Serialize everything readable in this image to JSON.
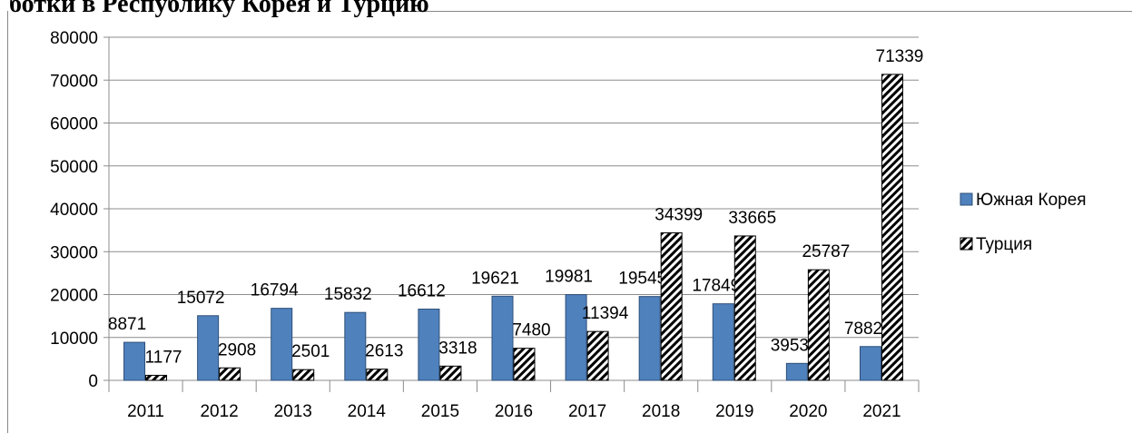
{
  "chart_data": {
    "type": "bar",
    "title": "ботки в Республику Корея и Турцию",
    "categories": [
      "2011",
      "2012",
      "2013",
      "2014",
      "2015",
      "2016",
      "2017",
      "2018",
      "2019",
      "2020",
      "2021"
    ],
    "series": [
      {
        "name": "Южная Корея",
        "color": "#4f81bd",
        "values": [
          8871,
          15072,
          16794,
          15832,
          16612,
          19621,
          19981,
          19545,
          17849,
          3953,
          7882
        ]
      },
      {
        "name": "Турция",
        "color": "#000000",
        "hatch": true,
        "values": [
          1177,
          2908,
          2501,
          2613,
          3318,
          7480,
          11394,
          34399,
          33665,
          25787,
          71339
        ]
      }
    ],
    "ylim": [
      0,
      80000
    ],
    "yticks": [
      0,
      10000,
      20000,
      30000,
      40000,
      50000,
      60000,
      70000,
      80000
    ],
    "grid": true,
    "legend": "right"
  }
}
